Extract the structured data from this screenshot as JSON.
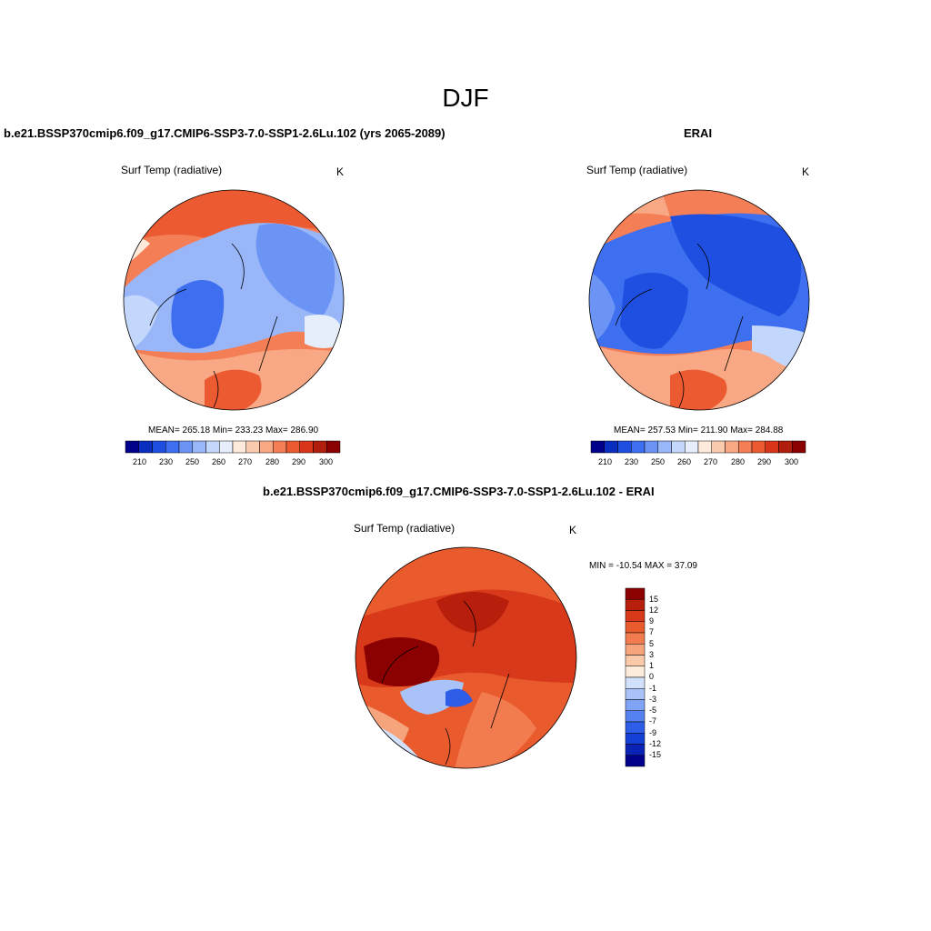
{
  "figure": {
    "title": "DJF"
  },
  "colors": {
    "abs_scale": [
      "#00008b",
      "#0a2fbf",
      "#1f4fe0",
      "#3d6ff0",
      "#6b94f5",
      "#98b6f8",
      "#c3d6fb",
      "#e6eefc",
      "#feeadb",
      "#fbcbb0",
      "#f8a884",
      "#f47e55",
      "#ec5a31",
      "#d9351b",
      "#b01e0e",
      "#8b0000"
    ],
    "diff_scale": [
      "#00008b",
      "#0a23b5",
      "#1440d6",
      "#2e5ee8",
      "#5582f0",
      "#80a4f5",
      "#a9c3f8",
      "#d2e1fb",
      "#fdebdc",
      "#f9c9aa",
      "#f6a47c",
      "#f27c4f",
      "#e95a2c",
      "#d8391a",
      "#b71f0c",
      "#8b0000"
    ]
  },
  "panels": [
    {
      "title": "b.e21.BSSP370cmip6.f09_g17.CMIP6-SSP3-7.0-SSP1-2.6Lu.102 (yrs 2065-2089)",
      "variable": "Surf Temp (radiative)",
      "units": "K",
      "stats": "MEAN= 265.18  Min= 233.23  Max= 286.90",
      "colorbar_ticks": [
        "210",
        "230",
        "250",
        "260",
        "270",
        "280",
        "290",
        "300"
      ]
    },
    {
      "title": "ERAI",
      "variable": "Surf Temp (radiative)",
      "units": "K",
      "stats": "MEAN= 257.53  Min= 211.90  Max= 284.88",
      "colorbar_ticks": [
        "210",
        "230",
        "250",
        "260",
        "270",
        "280",
        "290",
        "300"
      ]
    },
    {
      "title": "b.e21.BSSP370cmip6.f09_g17.CMIP6-SSP3-7.0-SSP1-2.6Lu.102 - ERAI",
      "variable": "Surf Temp (radiative)",
      "units": "K",
      "stats": "MIN = -10.54 MAX =  37.09",
      "colorbar_ticks": [
        "15",
        "12",
        "9",
        "7",
        "5",
        "3",
        "1",
        "0",
        "-1",
        "-3",
        "-5",
        "-7",
        "-9",
        "-12",
        "-15"
      ]
    }
  ]
}
